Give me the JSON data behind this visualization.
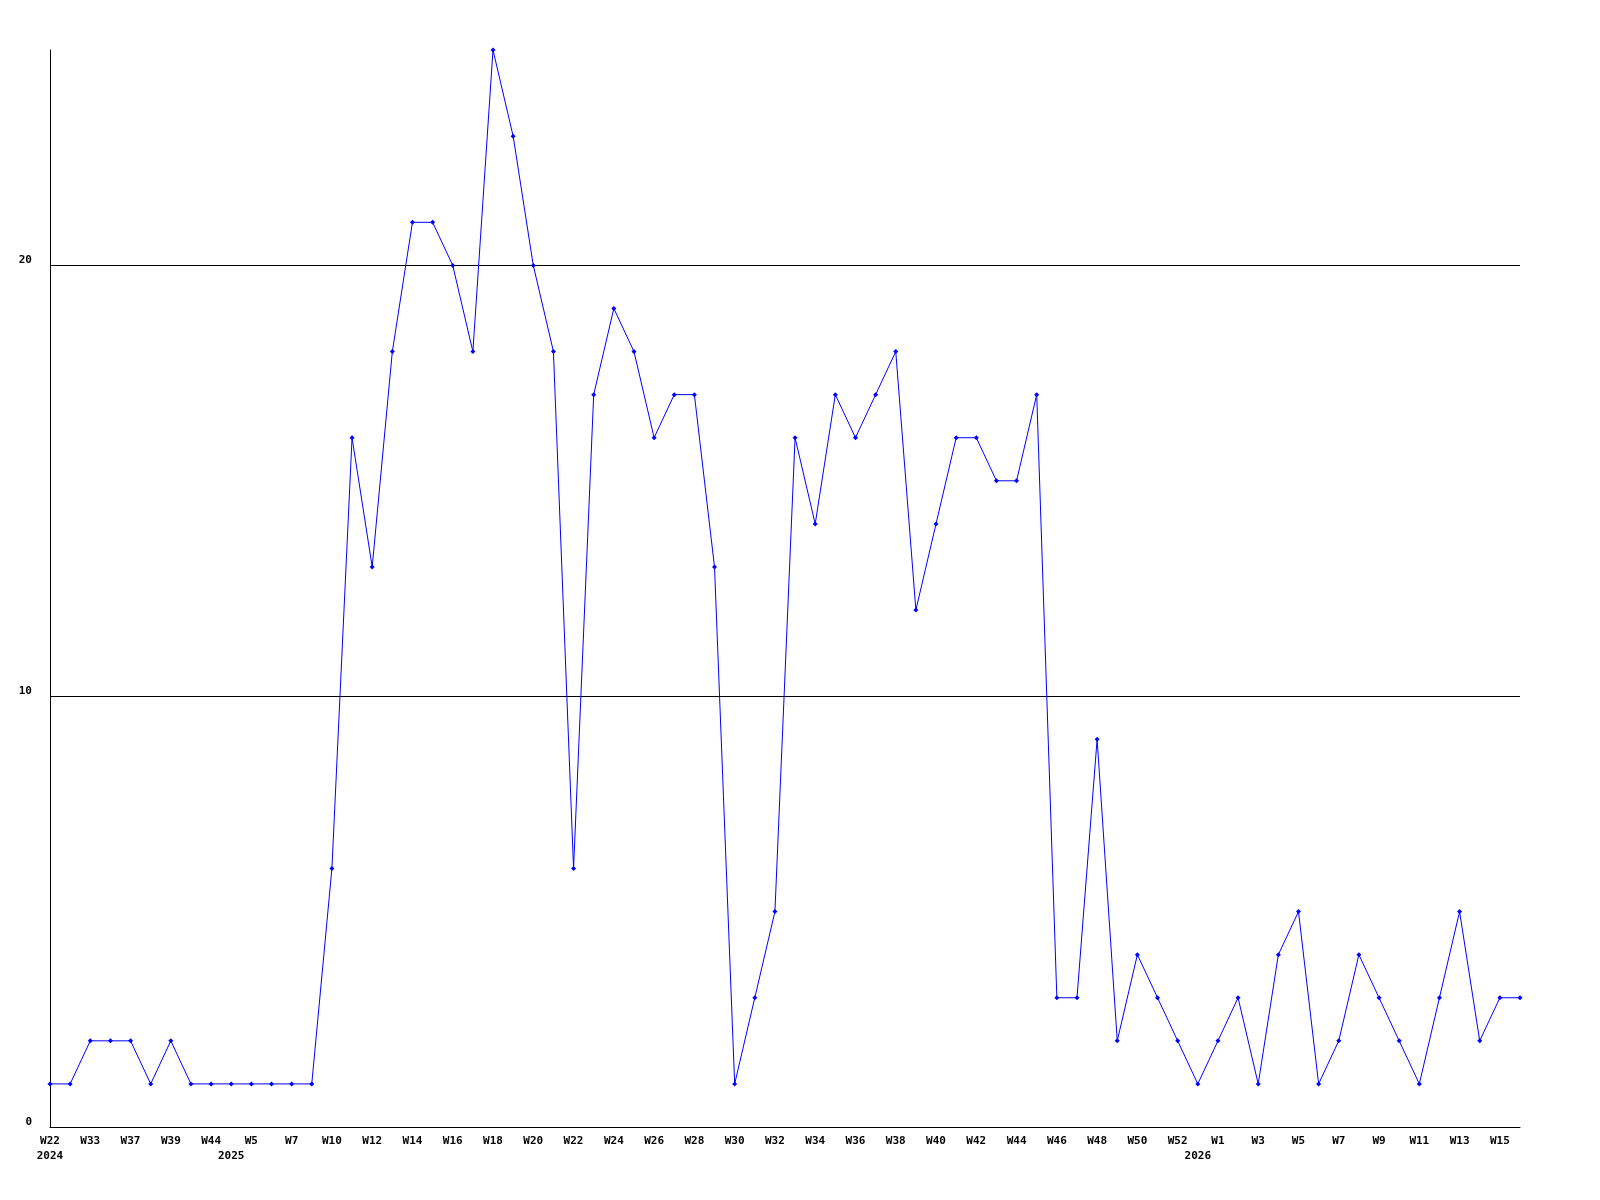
{
  "chart_data": {
    "type": "line",
    "categories": [
      "W22\n2024",
      null,
      "W33",
      null,
      "W37",
      null,
      "W39",
      null,
      "W44",
      "\n2025",
      "W5",
      null,
      "W7",
      null,
      "W10",
      null,
      "W12",
      null,
      "W14",
      null,
      "W16",
      null,
      "W18",
      null,
      "W20",
      null,
      "W22",
      null,
      "W24",
      null,
      "W26",
      null,
      "W28",
      null,
      "W30",
      null,
      "W32",
      null,
      "W34",
      null,
      "W36",
      null,
      "W38",
      null,
      "W40",
      null,
      "W42",
      null,
      "W44",
      null,
      "W46",
      null,
      "W48",
      null,
      "W50",
      null,
      "W52",
      "\n2026",
      "W1",
      null,
      "W3",
      null,
      "W5",
      null,
      "W7",
      null,
      "W9",
      null,
      "W11",
      null,
      "W13",
      null,
      "W15",
      null
    ],
    "series": [
      {
        "color": "#0000ff",
        "values": [
          1,
          1,
          2,
          2,
          2,
          1,
          2,
          1,
          1,
          1,
          1,
          1,
          1,
          1,
          6,
          16,
          13,
          18,
          21,
          21,
          20,
          18,
          25,
          23,
          20,
          18,
          6,
          17,
          19,
          18,
          16,
          17,
          17,
          13,
          1,
          3,
          5,
          16,
          14,
          17,
          16,
          17,
          18,
          12,
          14,
          16,
          16,
          15,
          15,
          17,
          3,
          3,
          9,
          2,
          4,
          3,
          2,
          1,
          2,
          3,
          1,
          4,
          5,
          1,
          2,
          4,
          3,
          2,
          1,
          3,
          5,
          2,
          3,
          3
        ]
      }
    ],
    "ylim": [
      0,
      25
    ],
    "yticks": [
      0,
      10,
      20
    ],
    "grid": "y",
    "marker": "diamond",
    "line_style": "solid"
  }
}
